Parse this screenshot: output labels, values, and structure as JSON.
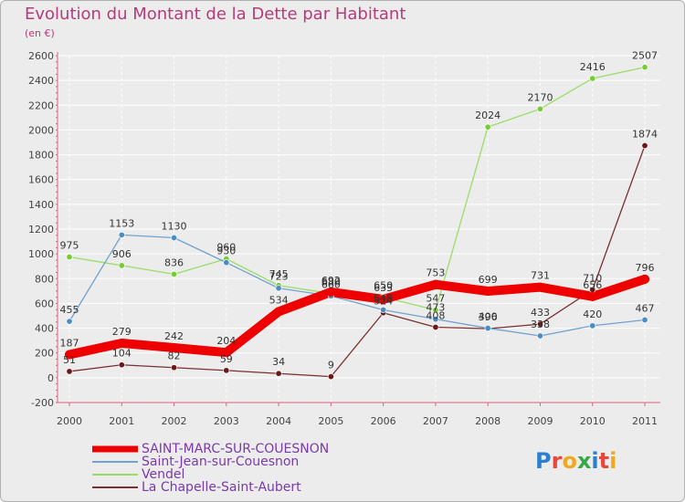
{
  "header": {
    "title": "Evolution du Montant de la Dette par Habitant",
    "subtitle": "(en €)"
  },
  "logo": {
    "letters": [
      "P",
      "r",
      "o",
      "x",
      "i",
      "t",
      "i"
    ]
  },
  "colors": {
    "background": "#ececec",
    "grid": "#ffffff",
    "title": "#b43c78",
    "axis_text": "#444444",
    "legend_text": "#7a3aa8"
  },
  "chart_data": {
    "type": "line",
    "title": "Evolution du Montant de la Dette par Habitant",
    "subtitle": "(en €)",
    "x": [
      "2000",
      "2001",
      "2002",
      "2003",
      "2004",
      "2005",
      "2006",
      "2007",
      "2008",
      "2009",
      "2010",
      "2011"
    ],
    "ylim": [
      -200,
      2600
    ],
    "yticks": [
      "-200",
      "0",
      "200",
      "400",
      "600",
      "800",
      "1000",
      "1200",
      "1400",
      "1600",
      "1800",
      "2000",
      "2200",
      "2400",
      "2600"
    ],
    "grid": true,
    "legend_position": "bottom-left",
    "series": [
      {
        "name": "SAINT-MARC-SUR-COUESNON",
        "color": "#ee0000",
        "marker": "#ee0000",
        "values": [
          187,
          279,
          242,
          204,
          534,
          692,
          633,
          753,
          699,
          731,
          656,
          796
        ],
        "labels": [
          "187",
          "279",
          "242",
          "204",
          "534",
          "692",
          "633",
          "753",
          "699",
          "731",
          "656",
          "796"
        ]
      },
      {
        "name": "Saint-Jean-sur-Couesnon",
        "color": "#6fa3cf",
        "marker": "#4a8cc4",
        "values": [
          455,
          1153,
          1130,
          930,
          723,
          660,
          548,
          473,
          400,
          338,
          420,
          467
        ],
        "labels": [
          "455",
          "1153",
          "1130",
          "930",
          "723",
          "660",
          "548",
          "473",
          "400",
          "338",
          "420",
          "467"
        ]
      },
      {
        "name": "Vendel",
        "color": "#99dd66",
        "marker": "#77cc33",
        "values": [
          975,
          906,
          836,
          960,
          745,
          680,
          650,
          547,
          2024,
          2170,
          2416,
          2507
        ],
        "labels": [
          "975",
          "906",
          "836",
          "960",
          "745",
          "680",
          "650",
          "547",
          "2024",
          "2170",
          "2416",
          "2507"
        ]
      },
      {
        "name": "La Chapelle-Saint-Aubert",
        "color": "#7a3030",
        "marker": "#6a1818",
        "values": [
          51,
          104,
          82,
          59,
          34,
          9,
          524,
          408,
          396,
          433,
          710,
          1874
        ],
        "labels": [
          "51",
          "104",
          "82",
          "59",
          "34",
          "9",
          "524",
          "408",
          "396",
          "433",
          "710",
          "1874"
        ]
      }
    ]
  }
}
